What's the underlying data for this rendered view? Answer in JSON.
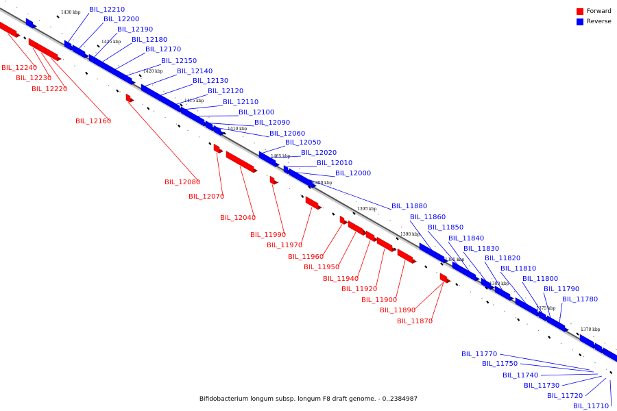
{
  "legend": {
    "forward_label": "Forward",
    "reverse_label": "Reverse",
    "forward_color": "#ff0000",
    "reverse_color": "#0000ff"
  },
  "caption": "Bifidobacterium longum subsp. longum F8 draft genome. - 0..2384987",
  "kbp_labels": [
    "1430 kbp",
    "1425 kbp",
    "1420 kbp",
    "1415 kbp",
    "1410 kbp",
    "1405 kbp",
    "1400 kbp",
    "1395 kbp",
    "1390 kbp",
    "1385 kbp",
    "1380 kbp",
    "1375 kbp",
    "1370 kbp"
  ],
  "reverse_genes": [
    "BIL_12210",
    "BIL_12200",
    "BIL_12190",
    "BIL_12180",
    "BIL_12170",
    "BIL_12150",
    "BIL_12140",
    "BIL_12130",
    "BIL_12120",
    "BIL_12110",
    "BIL_12100",
    "BIL_12090",
    "BIL_12060",
    "BIL_12050",
    "BIL_12020",
    "BIL_12010",
    "BIL_12000",
    "BIL_11880",
    "BIL_11860",
    "BIL_11850",
    "BIL_11840",
    "BIL_11830",
    "BIL_11820",
    "BIL_11810",
    "BIL_11800",
    "BIL_11790",
    "BIL_11780"
  ],
  "reverse_genes_lower": [
    "BIL_11770",
    "BIL_11750",
    "BIL_11740",
    "BIL_11730",
    "BIL_11720",
    "BIL_11710"
  ],
  "forward_genes": [
    "BIL_12240",
    "BIL_12230",
    "BIL_12220",
    "BIL_12160",
    "BIL_12080",
    "BIL_12070",
    "BIL_12040",
    "BIL_11990",
    "BIL_11970",
    "BIL_11960",
    "BIL_11950",
    "BIL_11940",
    "BIL_11920",
    "BIL_11900",
    "BIL_11890",
    "BIL_11870"
  ]
}
